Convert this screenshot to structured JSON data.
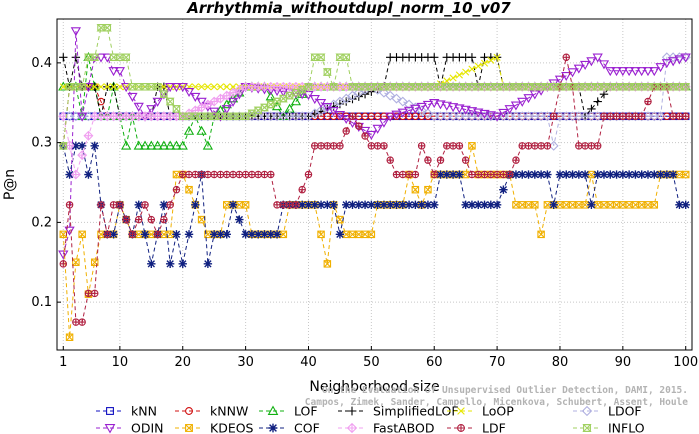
{
  "chart_data": {
    "type": "line",
    "title": "Arrhythmia_withoutdupl_norm_10_v07",
    "xlabel": "Neighborhood size",
    "ylabel": "P@n",
    "xlim": [
      0,
      101
    ],
    "ylim": [
      0.04,
      0.455
    ],
    "x_ticks": [
      1,
      10,
      20,
      30,
      40,
      50,
      60,
      70,
      80,
      90,
      100
    ],
    "y_ticks": [
      0.1,
      0.2,
      0.3,
      0.4
    ],
    "x_tick_labels": [
      "1",
      "10",
      "20",
      "30",
      "40",
      "50",
      "60",
      "70",
      "80",
      "90",
      "100"
    ],
    "y_tick_labels": [
      "0.1",
      "0.2",
      "0.3",
      "0.4"
    ],
    "grid": true,
    "legend_position": "bottom",
    "watermark": [
      "On the Evaluation of Unsupervised Outlier Detection, DAMI, 2015.",
      "Campos, Zimek, Sander, Campello, Micenkova, Schubert, Assent, Houle"
    ],
    "series": [
      {
        "name": "kNN",
        "color": "#1010c0",
        "marker": "square",
        "keyframes": [
          [
            1,
            0.333
          ],
          [
            100,
            0.333
          ]
        ]
      },
      {
        "name": "kNNW",
        "color": "#d01010",
        "marker": "circle",
        "keyframes": [
          [
            1,
            0.296
          ],
          [
            2,
            0.37
          ],
          [
            3,
            0.37
          ],
          [
            5,
            0.37
          ],
          [
            6,
            0.37
          ],
          [
            8,
            0.333
          ],
          [
            100,
            0.333
          ]
        ]
      },
      {
        "name": "LOF",
        "color": "#10b010",
        "marker": "triangle-up",
        "keyframes": [
          [
            1,
            0.37
          ],
          [
            3,
            0.37
          ],
          [
            4,
            0.333
          ],
          [
            5,
            0.407
          ],
          [
            6,
            0.37
          ],
          [
            7,
            0.333
          ],
          [
            8,
            0.333
          ],
          [
            9,
            0.37
          ],
          [
            10,
            0.333
          ],
          [
            11,
            0.296
          ],
          [
            12,
            0.333
          ],
          [
            13,
            0.296
          ],
          [
            20,
            0.296
          ],
          [
            22,
            0.333
          ],
          [
            24,
            0.296
          ],
          [
            25,
            0.333
          ],
          [
            30,
            0.37
          ],
          [
            33,
            0.37
          ],
          [
            36,
            0.333
          ],
          [
            40,
            0.37
          ],
          [
            45,
            0.37
          ],
          [
            50,
            0.37
          ],
          [
            55,
            0.37
          ],
          [
            60,
            0.37
          ],
          [
            65,
            0.37
          ],
          [
            70,
            0.37
          ],
          [
            75,
            0.37
          ],
          [
            80,
            0.37
          ],
          [
            85,
            0.37
          ],
          [
            90,
            0.37
          ],
          [
            95,
            0.37
          ],
          [
            100,
            0.37
          ]
        ]
      },
      {
        "name": "SimplifiedLOF",
        "color": "#000000",
        "marker": "plus",
        "keyframes": [
          [
            1,
            0.407
          ],
          [
            2,
            0.37
          ],
          [
            3,
            0.407
          ],
          [
            4,
            0.37
          ],
          [
            6,
            0.37
          ],
          [
            7,
            0.333
          ],
          [
            8,
            0.37
          ],
          [
            9,
            0.37
          ],
          [
            10,
            0.333
          ],
          [
            11,
            0.333
          ],
          [
            15,
            0.333
          ],
          [
            16,
            0.37
          ],
          [
            17,
            0.37
          ],
          [
            18,
            0.333
          ],
          [
            30,
            0.333
          ],
          [
            40,
            0.333
          ],
          [
            52,
            0.37
          ],
          [
            53,
            0.407
          ],
          [
            60,
            0.407
          ],
          [
            61,
            0.37
          ],
          [
            62,
            0.407
          ],
          [
            66,
            0.407
          ],
          [
            67,
            0.37
          ],
          [
            68,
            0.407
          ],
          [
            70,
            0.407
          ],
          [
            71,
            0.37
          ],
          [
            83,
            0.37
          ],
          [
            84,
            0.333
          ],
          [
            88,
            0.37
          ],
          [
            100,
            0.37
          ]
        ]
      },
      {
        "name": "LoOP",
        "color": "#e6e600",
        "marker": "x",
        "keyframes": [
          [
            1,
            0.37
          ],
          [
            10,
            0.37
          ],
          [
            30,
            0.37
          ],
          [
            60,
            0.37
          ],
          [
            70,
            0.407
          ],
          [
            71,
            0.37
          ],
          [
            100,
            0.37
          ]
        ]
      },
      {
        "name": "LDOF",
        "color": "#b0b0e0",
        "marker": "diamond",
        "keyframes": [
          [
            1,
            0.333
          ],
          [
            10,
            0.333
          ],
          [
            40,
            0.333
          ],
          [
            50,
            0.37
          ],
          [
            60,
            0.333
          ],
          [
            78,
            0.333
          ],
          [
            79,
            0.296
          ],
          [
            80,
            0.333
          ],
          [
            96,
            0.333
          ],
          [
            97,
            0.407
          ],
          [
            100,
            0.407
          ]
        ]
      },
      {
        "name": "ODIN",
        "color": "#9a20d0",
        "marker": "triangle-down",
        "keyframes": [
          [
            1,
            0.16
          ],
          [
            2,
            0.19
          ],
          [
            3,
            0.44
          ],
          [
            4,
            0.333
          ],
          [
            6,
            0.407
          ],
          [
            8,
            0.407
          ],
          [
            9,
            0.39
          ],
          [
            10,
            0.39
          ],
          [
            11,
            0.37
          ],
          [
            14,
            0.333
          ],
          [
            18,
            0.37
          ],
          [
            20,
            0.37
          ],
          [
            26,
            0.333
          ],
          [
            30,
            0.37
          ],
          [
            40,
            0.36
          ],
          [
            50,
            0.31
          ],
          [
            53,
            0.333
          ],
          [
            60,
            0.35
          ],
          [
            70,
            0.333
          ],
          [
            78,
            0.37
          ],
          [
            86,
            0.407
          ],
          [
            88,
            0.39
          ],
          [
            95,
            0.39
          ],
          [
            97,
            0.4
          ],
          [
            100,
            0.407
          ]
        ]
      },
      {
        "name": "KDEOS",
        "color": "#f0b000",
        "marker": "square-x",
        "keyframes": [
          [
            1,
            0.185
          ],
          [
            2,
            0.056
          ],
          [
            3,
            0.15
          ],
          [
            4,
            0.185
          ],
          [
            5,
            0.11
          ],
          [
            6,
            0.15
          ],
          [
            7,
            0.185
          ],
          [
            9,
            0.185
          ],
          [
            10,
            0.222
          ],
          [
            12,
            0.185
          ],
          [
            18,
            0.185
          ],
          [
            19,
            0.26
          ],
          [
            20,
            0.26
          ],
          [
            22,
            0.222
          ],
          [
            24,
            0.185
          ],
          [
            26,
            0.185
          ],
          [
            27,
            0.222
          ],
          [
            30,
            0.222
          ],
          [
            31,
            0.185
          ],
          [
            36,
            0.185
          ],
          [
            37,
            0.222
          ],
          [
            41,
            0.222
          ],
          [
            42,
            0.185
          ],
          [
            43,
            0.148
          ],
          [
            44,
            0.222
          ],
          [
            46,
            0.185
          ],
          [
            50,
            0.185
          ],
          [
            51,
            0.222
          ],
          [
            55,
            0.222
          ],
          [
            56,
            0.26
          ],
          [
            58,
            0.222
          ],
          [
            60,
            0.26
          ],
          [
            65,
            0.26
          ],
          [
            66,
            0.296
          ],
          [
            67,
            0.26
          ],
          [
            72,
            0.26
          ],
          [
            73,
            0.222
          ],
          [
            76,
            0.222
          ],
          [
            77,
            0.185
          ],
          [
            78,
            0.222
          ],
          [
            84,
            0.222
          ],
          [
            85,
            0.26
          ],
          [
            86,
            0.222
          ],
          [
            95,
            0.222
          ],
          [
            96,
            0.26
          ],
          [
            100,
            0.26
          ]
        ]
      },
      {
        "name": "COF",
        "color": "#102080",
        "marker": "star",
        "keyframes": [
          [
            1,
            0.296
          ],
          [
            2,
            0.26
          ],
          [
            3,
            0.296
          ],
          [
            4,
            0.296
          ],
          [
            5,
            0.26
          ],
          [
            6,
            0.296
          ],
          [
            7,
            0.222
          ],
          [
            8,
            0.185
          ],
          [
            9,
            0.185
          ],
          [
            10,
            0.222
          ],
          [
            12,
            0.185
          ],
          [
            13,
            0.222
          ],
          [
            14,
            0.185
          ],
          [
            15,
            0.148
          ],
          [
            16,
            0.185
          ],
          [
            17,
            0.222
          ],
          [
            18,
            0.148
          ],
          [
            19,
            0.185
          ],
          [
            20,
            0.148
          ],
          [
            21,
            0.185
          ],
          [
            22,
            0.222
          ],
          [
            23,
            0.26
          ],
          [
            24,
            0.148
          ],
          [
            25,
            0.185
          ],
          [
            27,
            0.185
          ],
          [
            28,
            0.222
          ],
          [
            30,
            0.185
          ],
          [
            35,
            0.185
          ],
          [
            36,
            0.222
          ],
          [
            40,
            0.222
          ],
          [
            44,
            0.222
          ],
          [
            45,
            0.185
          ],
          [
            46,
            0.222
          ],
          [
            60,
            0.222
          ],
          [
            61,
            0.26
          ],
          [
            64,
            0.26
          ],
          [
            65,
            0.222
          ],
          [
            70,
            0.222
          ],
          [
            72,
            0.26
          ],
          [
            78,
            0.26
          ],
          [
            79,
            0.222
          ],
          [
            80,
            0.26
          ],
          [
            84,
            0.26
          ],
          [
            85,
            0.222
          ],
          [
            86,
            0.26
          ],
          [
            98,
            0.26
          ],
          [
            99,
            0.222
          ],
          [
            100,
            0.222
          ]
        ]
      },
      {
        "name": "FastABOD",
        "color": "#f0a0f0",
        "marker": "diamond-plus",
        "keyframes": [
          [
            1,
            0.333
          ],
          [
            3,
            0.26
          ],
          [
            6,
            0.333
          ],
          [
            20,
            0.333
          ],
          [
            30,
            0.37
          ],
          [
            40,
            0.37
          ],
          [
            60,
            0.37
          ],
          [
            80,
            0.37
          ],
          [
            100,
            0.37
          ]
        ]
      },
      {
        "name": "LDF",
        "color": "#b02040",
        "marker": "circle-plus",
        "keyframes": [
          [
            1,
            0.148
          ],
          [
            2,
            0.222
          ],
          [
            3,
            0.075
          ],
          [
            4,
            0.075
          ],
          [
            5,
            0.111
          ],
          [
            6,
            0.111
          ],
          [
            7,
            0.222
          ],
          [
            8,
            0.185
          ],
          [
            9,
            0.222
          ],
          [
            10,
            0.222
          ],
          [
            12,
            0.185
          ],
          [
            14,
            0.222
          ],
          [
            16,
            0.185
          ],
          [
            18,
            0.222
          ],
          [
            20,
            0.26
          ],
          [
            26,
            0.26
          ],
          [
            28,
            0.26
          ],
          [
            34,
            0.26
          ],
          [
            35,
            0.222
          ],
          [
            38,
            0.222
          ],
          [
            40,
            0.26
          ],
          [
            41,
            0.296
          ],
          [
            45,
            0.296
          ],
          [
            47,
            0.333
          ],
          [
            50,
            0.296
          ],
          [
            52,
            0.296
          ],
          [
            54,
            0.26
          ],
          [
            57,
            0.26
          ],
          [
            58,
            0.296
          ],
          [
            60,
            0.26
          ],
          [
            62,
            0.296
          ],
          [
            64,
            0.296
          ],
          [
            66,
            0.26
          ],
          [
            70,
            0.26
          ],
          [
            72,
            0.26
          ],
          [
            74,
            0.296
          ],
          [
            78,
            0.296
          ],
          [
            80,
            0.37
          ],
          [
            81,
            0.407
          ],
          [
            82,
            0.37
          ],
          [
            83,
            0.296
          ],
          [
            84,
            0.296
          ],
          [
            86,
            0.296
          ],
          [
            87,
            0.333
          ],
          [
            90,
            0.333
          ],
          [
            93,
            0.333
          ],
          [
            95,
            0.37
          ],
          [
            97,
            0.37
          ],
          [
            98,
            0.333
          ],
          [
            100,
            0.333
          ]
        ]
      },
      {
        "name": "INFLO",
        "color": "#a0d060",
        "marker": "hourglass",
        "keyframes": [
          [
            1,
            0.296
          ],
          [
            2,
            0.37
          ],
          [
            4,
            0.37
          ],
          [
            5,
            0.407
          ],
          [
            6,
            0.407
          ],
          [
            7,
            0.444
          ],
          [
            8,
            0.444
          ],
          [
            9,
            0.407
          ],
          [
            10,
            0.407
          ],
          [
            11,
            0.407
          ],
          [
            12,
            0.37
          ],
          [
            16,
            0.37
          ],
          [
            20,
            0.333
          ],
          [
            30,
            0.333
          ],
          [
            40,
            0.37
          ],
          [
            41,
            0.407
          ],
          [
            42,
            0.407
          ],
          [
            44,
            0.37
          ],
          [
            45,
            0.407
          ],
          [
            46,
            0.407
          ],
          [
            47,
            0.37
          ],
          [
            50,
            0.37
          ],
          [
            60,
            0.37
          ],
          [
            70,
            0.37
          ],
          [
            90,
            0.37
          ],
          [
            100,
            0.37
          ]
        ]
      }
    ]
  }
}
